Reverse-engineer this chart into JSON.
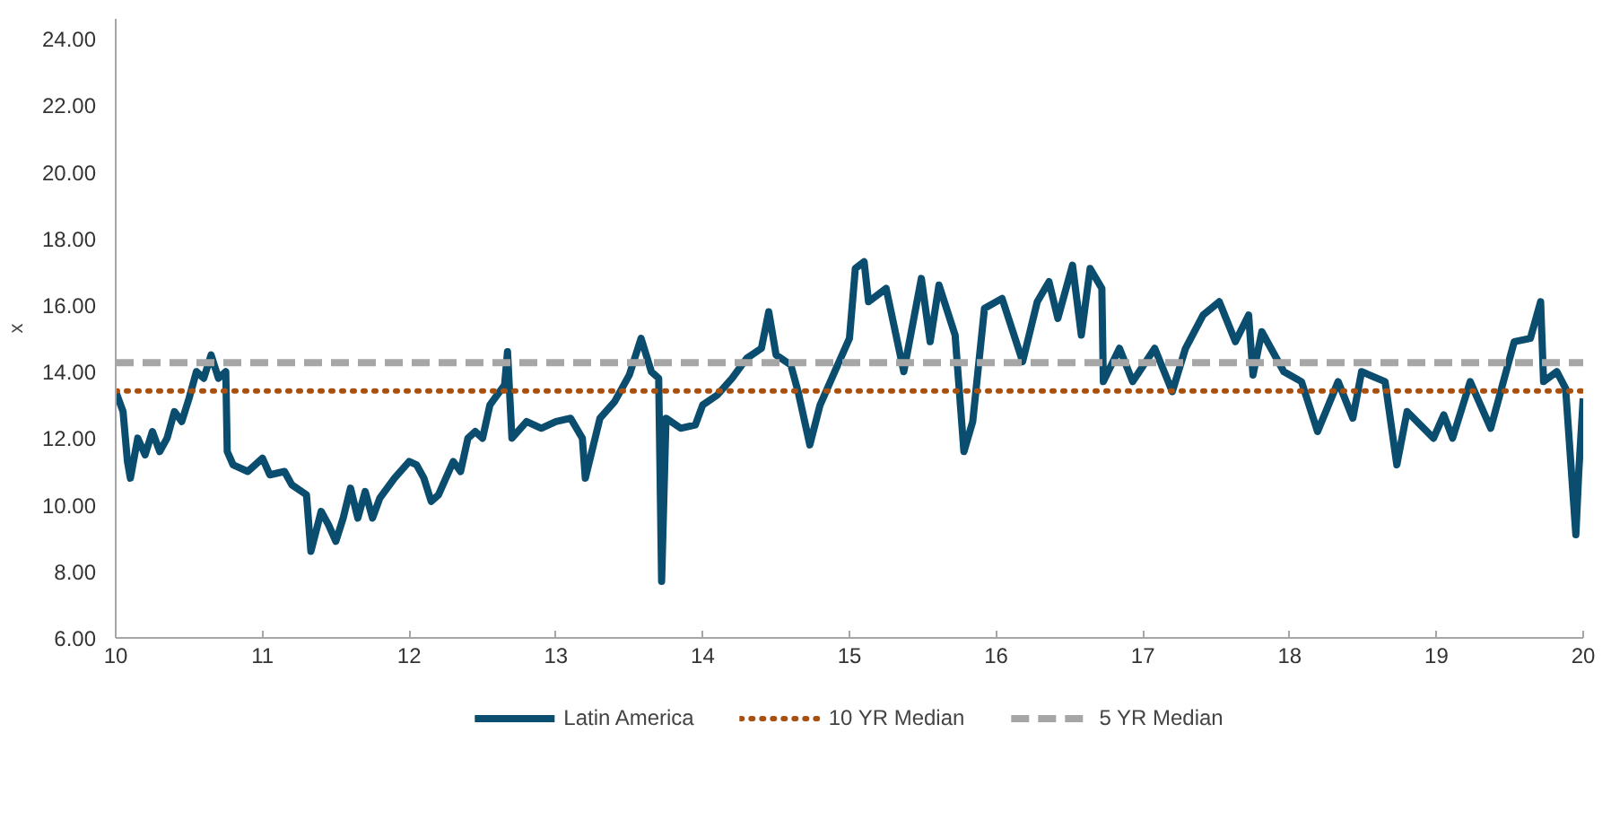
{
  "chart_data": {
    "type": "line",
    "ylabel": "x",
    "xlim": [
      10,
      20
    ],
    "xticks": [
      10,
      11,
      12,
      13,
      14,
      15,
      16,
      17,
      18,
      19,
      20
    ],
    "ylim": [
      6,
      24.6
    ],
    "yticks": [
      {
        "value": 6,
        "label": "6.00"
      },
      {
        "value": 8,
        "label": "8.00"
      },
      {
        "value": 10,
        "label": "10.00"
      },
      {
        "value": 12,
        "label": "12.00"
      },
      {
        "value": 14,
        "label": "14.00"
      },
      {
        "value": 16,
        "label": "16.00"
      },
      {
        "value": 18,
        "label": "18.00"
      },
      {
        "value": 20,
        "label": "20.00"
      },
      {
        "value": 22,
        "label": "22.00"
      },
      {
        "value": 24,
        "label": "24.00"
      }
    ],
    "grid": false,
    "legend": "bottom",
    "series": [
      {
        "name": "Latin America",
        "color": "#0b4d6e",
        "line_style": "solid",
        "x": [
          10.0,
          10.05,
          10.08,
          10.1,
          10.15,
          10.2,
          10.25,
          10.3,
          10.35,
          10.4,
          10.45,
          10.5,
          10.55,
          10.6,
          10.65,
          10.7,
          10.75,
          10.76,
          10.8,
          10.9,
          11.0,
          11.05,
          11.15,
          11.2,
          11.3,
          11.33,
          11.4,
          11.45,
          11.5,
          11.55,
          11.6,
          11.65,
          11.7,
          11.75,
          11.8,
          11.9,
          12.0,
          12.05,
          12.1,
          12.15,
          12.2,
          12.3,
          12.35,
          12.4,
          12.45,
          12.5,
          12.55,
          12.6,
          12.65,
          12.67,
          12.7,
          12.8,
          12.9,
          13.0,
          13.1,
          13.18,
          13.2,
          13.3,
          13.4,
          13.5,
          13.58,
          13.65,
          13.7,
          13.72,
          13.75,
          13.85,
          13.95,
          14.0,
          14.1,
          14.2,
          14.3,
          14.4,
          14.45,
          14.5,
          14.6,
          14.65,
          14.73,
          14.8,
          14.9,
          15.0,
          15.04,
          15.1,
          15.13,
          15.25,
          15.37,
          15.49,
          15.55,
          15.61,
          15.72,
          15.78,
          15.84,
          15.92,
          16.04,
          16.18,
          16.28,
          16.36,
          16.42,
          16.52,
          16.58,
          16.64,
          16.72,
          16.73,
          16.84,
          16.93,
          17.08,
          17.2,
          17.29,
          17.41,
          17.52,
          17.63,
          17.72,
          17.75,
          17.81,
          17.96,
          18.08,
          18.19,
          18.33,
          18.43,
          18.49,
          18.65,
          18.73,
          18.8,
          18.98,
          19.05,
          19.11,
          19.23,
          19.37,
          19.53,
          19.64,
          19.71,
          19.73,
          19.82,
          19.88,
          19.95,
          19.97,
          20.0
        ],
        "values": [
          13.4,
          12.8,
          11.3,
          10.8,
          12.0,
          11.5,
          12.2,
          11.6,
          12.0,
          12.8,
          12.5,
          13.2,
          14.0,
          13.8,
          14.5,
          13.8,
          14.0,
          11.6,
          11.2,
          11.0,
          11.4,
          10.9,
          11.0,
          10.6,
          10.3,
          8.6,
          9.8,
          9.4,
          8.9,
          9.6,
          10.5,
          9.6,
          10.4,
          9.6,
          10.2,
          10.8,
          11.3,
          11.2,
          10.8,
          10.1,
          10.3,
          11.3,
          11.0,
          12.0,
          12.2,
          12.0,
          13.0,
          13.3,
          13.6,
          14.6,
          12.0,
          12.5,
          12.3,
          12.5,
          12.6,
          12.0,
          10.8,
          12.6,
          13.1,
          13.9,
          15.0,
          14.0,
          13.8,
          7.7,
          12.6,
          12.3,
          12.4,
          13.0,
          13.3,
          13.8,
          14.4,
          14.7,
          15.8,
          14.5,
          14.2,
          13.4,
          11.8,
          13.0,
          14.0,
          15.0,
          17.1,
          17.3,
          16.1,
          16.5,
          14.0,
          16.8,
          14.9,
          16.6,
          15.1,
          11.6,
          12.5,
          15.9,
          16.2,
          14.3,
          16.1,
          16.7,
          15.6,
          17.2,
          15.1,
          17.1,
          16.5,
          13.7,
          14.7,
          13.7,
          14.7,
          13.4,
          14.7,
          15.7,
          16.1,
          14.9,
          15.7,
          13.9,
          15.2,
          14.0,
          13.7,
          12.2,
          13.7,
          12.6,
          14.0,
          13.7,
          11.2,
          12.8,
          12.0,
          12.7,
          12.0,
          13.7,
          12.3,
          14.9,
          15.0,
          16.1,
          13.7,
          14.0,
          13.5,
          9.1,
          11.0,
          13.2
        ]
      },
      {
        "name": "10 YR Median",
        "color": "#a9500f",
        "line_style": "dotted",
        "x": [
          10,
          20
        ],
        "values": [
          13.42,
          13.42
        ]
      },
      {
        "name": "5 YR Median",
        "color": "#a6a6a6",
        "line_style": "dashed",
        "x": [
          10,
          20
        ],
        "values": [
          14.27,
          14.27
        ]
      }
    ]
  }
}
